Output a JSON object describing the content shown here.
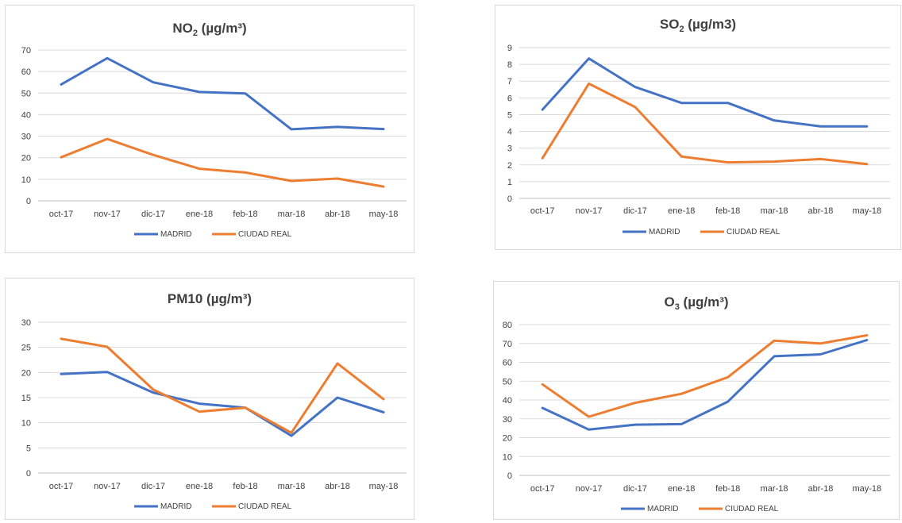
{
  "chart_data": [
    {
      "type": "line",
      "title": "NO2 (µg/m³)",
      "title_parts": {
        "pre": "NO",
        "sub": "2",
        "post": " (µg/m³)"
      },
      "categories": [
        "oct-17",
        "nov-17",
        "dic-17",
        "ene-18",
        "feb-18",
        "mar-18",
        "abr-18",
        "may-18"
      ],
      "ylim": [
        0,
        70
      ],
      "yticks": [
        0,
        10,
        20,
        30,
        40,
        50,
        60,
        70
      ],
      "grid": true,
      "legend": "bottom",
      "series": [
        {
          "name": "MADRID",
          "color": "#4472c4",
          "values": [
            54,
            66.2,
            55,
            50.5,
            49.8,
            33.2,
            34.3,
            33.3
          ]
        },
        {
          "name": "CIUDAD REAL",
          "color": "#ed7d31",
          "values": [
            20.2,
            28.7,
            21.3,
            14.9,
            13.1,
            9.2,
            10.3,
            6.6
          ]
        }
      ]
    },
    {
      "type": "line",
      "title": "SO2 (µg/m3)",
      "title_parts": {
        "pre": "SO",
        "sub": "2",
        "post": " (µg/m3)"
      },
      "categories": [
        "oct-17",
        "nov-17",
        "dic-17",
        "ene-18",
        "feb-18",
        "mar-18",
        "abr-18",
        "may-18"
      ],
      "ylim": [
        0,
        9
      ],
      "yticks": [
        0,
        1,
        2,
        3,
        4,
        5,
        6,
        7,
        8,
        9
      ],
      "grid": true,
      "legend": "bottom",
      "series": [
        {
          "name": "MADRID",
          "color": "#4472c4",
          "values": [
            5.3,
            8.35,
            6.65,
            5.7,
            5.7,
            4.65,
            4.3,
            4.3
          ]
        },
        {
          "name": "CIUDAD REAL",
          "color": "#ed7d31",
          "values": [
            2.4,
            6.85,
            5.45,
            2.5,
            2.15,
            2.2,
            2.35,
            2.05
          ]
        }
      ]
    },
    {
      "type": "line",
      "title": "PM10 (µg/m³)",
      "title_parts": {
        "pre": "PM10 (µg/m³)",
        "sub": "",
        "post": ""
      },
      "categories": [
        "oct-17",
        "nov-17",
        "dic-17",
        "ene-18",
        "feb-18",
        "mar-18",
        "abr-18",
        "may-18"
      ],
      "ylim": [
        0,
        30
      ],
      "yticks": [
        0,
        5,
        10,
        15,
        20,
        25,
        30
      ],
      "grid": true,
      "legend": "bottom",
      "series": [
        {
          "name": "MADRID",
          "color": "#4472c4",
          "values": [
            19.7,
            20.1,
            16,
            13.8,
            13,
            7.4,
            15,
            12.1
          ]
        },
        {
          "name": "CIUDAD REAL",
          "color": "#ed7d31",
          "values": [
            26.7,
            25.1,
            16.6,
            12.2,
            13,
            8,
            21.8,
            14.7
          ]
        }
      ]
    },
    {
      "type": "line",
      "title": "O3 (µg/m³)",
      "title_parts": {
        "pre": "O",
        "sub": "3",
        "post": " (µg/m³)"
      },
      "categories": [
        "oct-17",
        "nov-17",
        "dic-17",
        "ene-18",
        "feb-18",
        "mar-18",
        "abr-18",
        "may-18"
      ],
      "ylim": [
        0,
        80
      ],
      "yticks": [
        0,
        10,
        20,
        30,
        40,
        50,
        60,
        70,
        80
      ],
      "grid": true,
      "legend": "bottom",
      "series": [
        {
          "name": "MADRID",
          "color": "#4472c4",
          "values": [
            35.8,
            24.3,
            26.9,
            27.2,
            39.1,
            63.2,
            64.2,
            71.8
          ]
        },
        {
          "name": "CIUDAD REAL",
          "color": "#ed7d31",
          "values": [
            48.3,
            31.1,
            38.5,
            43.3,
            52.1,
            71.5,
            70,
            74.3
          ]
        }
      ]
    }
  ]
}
